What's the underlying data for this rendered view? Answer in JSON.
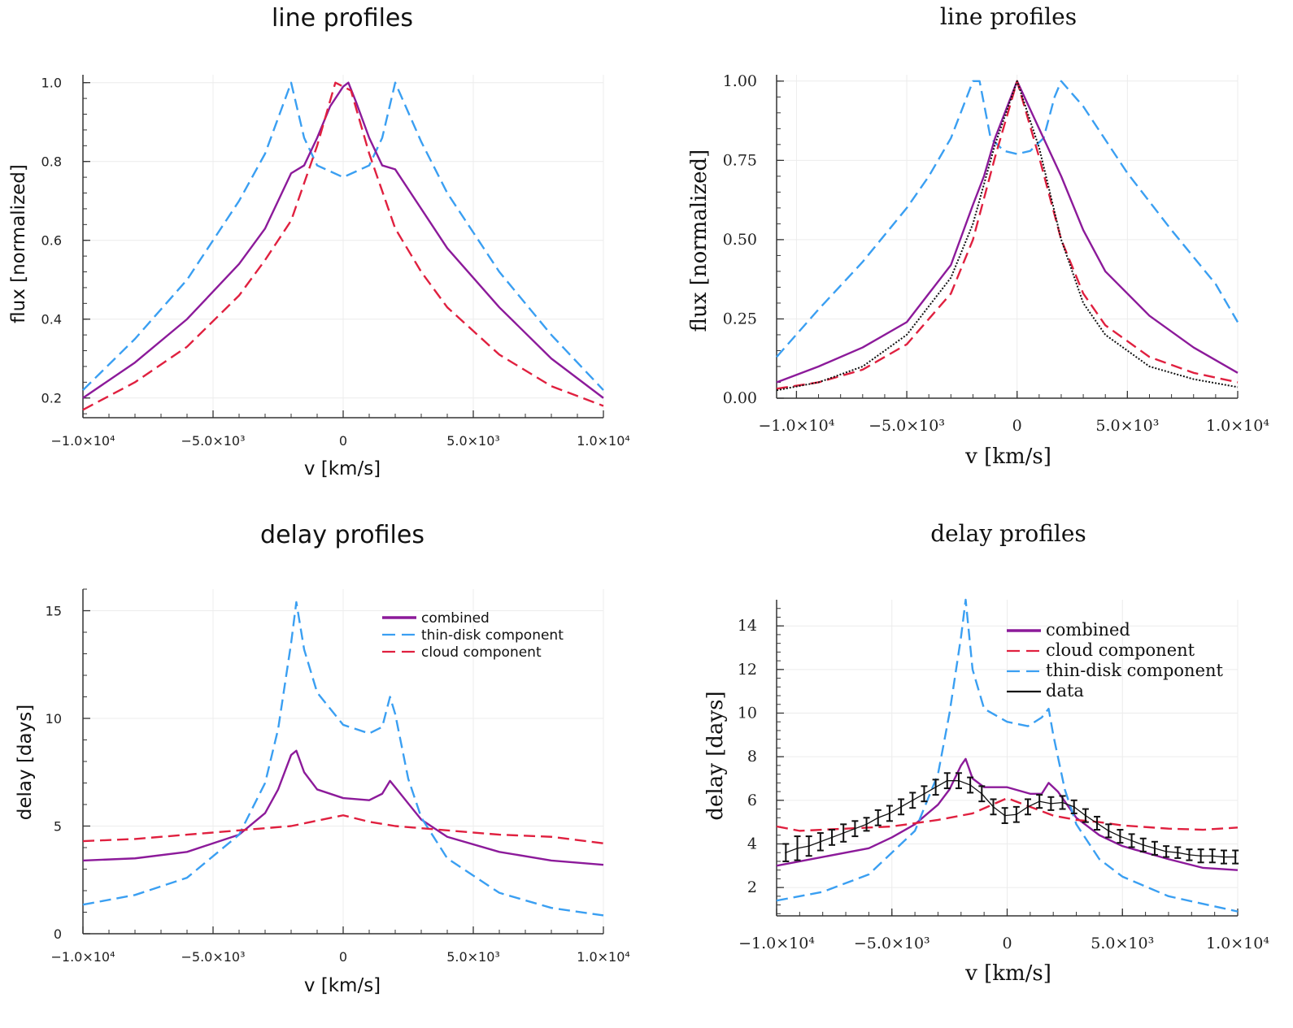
{
  "chart_data": [
    {
      "type": "line",
      "title": "line profiles",
      "xlabel": "v [km/s]",
      "ylabel": "flux [normalized]",
      "xlim": [
        -10000,
        10000
      ],
      "ylim": [
        0.15,
        1.02
      ],
      "grid": true,
      "xticks": [
        -10000,
        -5000,
        0,
        5000,
        10000
      ],
      "xtick_labels": [
        "−1.0×10⁴",
        "−5.0×10³",
        "0",
        "5.0×10³",
        "1.0×10⁴"
      ],
      "yticks": [
        0.2,
        0.4,
        0.6,
        0.8,
        1.0
      ],
      "ytick_labels": [
        "0.2",
        "0.4",
        "0.6",
        "0.8",
        "1.0"
      ],
      "series": [
        {
          "color": "#3a9ff2",
          "style": "dashed",
          "x": [
            -10000,
            -8000,
            -6000,
            -4000,
            -3000,
            -2000,
            -1500,
            -1000,
            0,
            1000,
            1500,
            2000,
            3000,
            4000,
            6000,
            8000,
            10000
          ],
          "y": [
            0.22,
            0.35,
            0.5,
            0.7,
            0.82,
            1.0,
            0.86,
            0.79,
            0.76,
            0.79,
            0.86,
            1.0,
            0.85,
            0.72,
            0.52,
            0.36,
            0.22
          ]
        },
        {
          "color": "#8c1a9a",
          "style": "solid",
          "x": [
            -10000,
            -8000,
            -6000,
            -4000,
            -3000,
            -2000,
            -1500,
            -1000,
            -500,
            0,
            200,
            500,
            1000,
            1500,
            2000,
            3000,
            4000,
            6000,
            8000,
            10000
          ],
          "y": [
            0.2,
            0.29,
            0.4,
            0.54,
            0.63,
            0.77,
            0.79,
            0.86,
            0.94,
            0.99,
            1.0,
            0.95,
            0.86,
            0.79,
            0.78,
            0.68,
            0.58,
            0.43,
            0.3,
            0.2
          ]
        },
        {
          "color": "#e0203f",
          "style": "dashed",
          "x": [
            -10000,
            -8000,
            -6000,
            -4000,
            -3000,
            -2000,
            -1000,
            -300,
            0,
            300,
            1000,
            2000,
            3000,
            4000,
            6000,
            8000,
            10000
          ],
          "y": [
            0.17,
            0.24,
            0.33,
            0.46,
            0.55,
            0.65,
            0.84,
            1.0,
            0.99,
            0.98,
            0.82,
            0.63,
            0.52,
            0.43,
            0.31,
            0.23,
            0.18
          ]
        }
      ]
    },
    {
      "type": "line",
      "title": "line profiles",
      "xlabel": "v [km/s]",
      "ylabel": "flux [normalized]",
      "xlim": [
        -10900,
        10000
      ],
      "ylim": [
        0,
        1.02
      ],
      "grid": true,
      "xticks": [
        -10000,
        -5000,
        0,
        5000,
        10000
      ],
      "xtick_labels": [
        "−1.0×10⁴",
        "−5.0×10³",
        "0",
        "5.0×10³",
        "1.0×10⁴"
      ],
      "yticks": [
        0,
        0.25,
        0.5,
        0.75,
        1.0
      ],
      "ytick_labels": [
        "0.00",
        "0.25",
        "0.50",
        "0.75",
        "1.00"
      ],
      "series": [
        {
          "color": "#3a9ff2",
          "style": "dashed",
          "x": [
            -10900,
            -9000,
            -7000,
            -5000,
            -4000,
            -3000,
            -2000,
            -1700,
            -1200,
            -600,
            0,
            600,
            1200,
            1700,
            2000,
            3000,
            5000,
            7000,
            9000,
            10000
          ],
          "y": [
            0.13,
            0.28,
            0.43,
            0.6,
            0.7,
            0.82,
            1.0,
            1.0,
            0.82,
            0.78,
            0.77,
            0.78,
            0.82,
            0.95,
            1.0,
            0.92,
            0.71,
            0.53,
            0.36,
            0.24
          ]
        },
        {
          "color": "#8c1a9a",
          "style": "solid",
          "x": [
            -10900,
            -9000,
            -7000,
            -5000,
            -3000,
            -2000,
            -1500,
            -1000,
            0,
            1000,
            2000,
            3000,
            4000,
            6000,
            8000,
            10000
          ],
          "y": [
            0.05,
            0.1,
            0.16,
            0.24,
            0.42,
            0.61,
            0.7,
            0.82,
            1.0,
            0.85,
            0.7,
            0.53,
            0.4,
            0.26,
            0.16,
            0.08
          ]
        },
        {
          "color": "#e0203f",
          "style": "dashed",
          "x": [
            -10900,
            -9000,
            -7000,
            -5000,
            -3000,
            -2000,
            -1000,
            0,
            1000,
            2000,
            3000,
            4000,
            6000,
            8000,
            10000
          ],
          "y": [
            0.03,
            0.05,
            0.09,
            0.17,
            0.33,
            0.5,
            0.76,
            1.0,
            0.76,
            0.5,
            0.33,
            0.23,
            0.13,
            0.08,
            0.05
          ]
        },
        {
          "color": "#111111",
          "style": "dotted",
          "x": [
            -10900,
            -9000,
            -7000,
            -5000,
            -3000,
            -2000,
            -1000,
            0,
            1000,
            2000,
            3000,
            4000,
            6000,
            8000,
            10000
          ],
          "y": [
            0.025,
            0.05,
            0.1,
            0.2,
            0.38,
            0.55,
            0.8,
            1.0,
            0.79,
            0.5,
            0.3,
            0.2,
            0.1,
            0.06,
            0.035
          ]
        }
      ]
    },
    {
      "type": "line",
      "title": "delay profiles",
      "xlabel": "v [km/s]",
      "ylabel": "delay [days]",
      "xlim": [
        -10000,
        10000
      ],
      "ylim": [
        0,
        16
      ],
      "grid": true,
      "legend": "top-right",
      "xticks": [
        -10000,
        -5000,
        0,
        5000,
        10000
      ],
      "xtick_labels": [
        "−1.0×10⁴",
        "−5.0×10³",
        "0",
        "5.0×10³",
        "1.0×10⁴"
      ],
      "yticks": [
        0,
        5,
        10,
        15
      ],
      "ytick_labels": [
        "0",
        "5",
        "10",
        "15"
      ],
      "series": [
        {
          "name": "combined",
          "color": "#8c1a9a",
          "style": "solid",
          "x": [
            -10000,
            -8000,
            -6000,
            -4000,
            -3000,
            -2500,
            -2000,
            -1800,
            -1500,
            -1000,
            0,
            1000,
            1500,
            1800,
            2000,
            3000,
            4000,
            6000,
            8000,
            10000
          ],
          "y": [
            3.4,
            3.5,
            3.8,
            4.6,
            5.6,
            6.7,
            8.3,
            8.5,
            7.5,
            6.7,
            6.3,
            6.2,
            6.5,
            7.1,
            6.8,
            5.3,
            4.5,
            3.8,
            3.4,
            3.2
          ]
        },
        {
          "name": "thin-disk component",
          "color": "#3a9ff2",
          "style": "dashed",
          "x": [
            -10000,
            -8000,
            -6000,
            -4000,
            -3000,
            -2500,
            -2000,
            -1800,
            -1500,
            -1000,
            0,
            1000,
            1500,
            1800,
            2000,
            2500,
            3000,
            4000,
            6000,
            8000,
            10000
          ],
          "y": [
            1.35,
            1.8,
            2.6,
            4.6,
            7.0,
            9.5,
            13.5,
            15.4,
            13.2,
            11.2,
            9.7,
            9.3,
            9.6,
            11.0,
            10.2,
            7.2,
            5.4,
            3.5,
            1.9,
            1.2,
            0.85
          ]
        },
        {
          "name": "cloud component",
          "color": "#e0203f",
          "style": "dashed",
          "x": [
            -10000,
            -8000,
            -6000,
            -4000,
            -2000,
            0,
            1000,
            2000,
            4000,
            6000,
            8000,
            10000
          ],
          "y": [
            4.3,
            4.4,
            4.6,
            4.8,
            5.0,
            5.5,
            5.2,
            5.0,
            4.8,
            4.6,
            4.5,
            4.2
          ]
        }
      ]
    },
    {
      "type": "line",
      "title": "delay profiles",
      "xlabel": "v [km/s]",
      "ylabel": "delay [days]",
      "xlim": [
        -10000,
        10000
      ],
      "ylim": [
        0.7,
        15.2
      ],
      "grid": true,
      "legend": "top-right",
      "xticks": [
        -10000,
        -5000,
        0,
        5000,
        10000
      ],
      "xtick_labels": [
        "−1.0×10⁴",
        "−5.0×10³",
        "0",
        "5.0×10³",
        "1.0×10⁴"
      ],
      "yticks": [
        2,
        4,
        6,
        8,
        10,
        12,
        14
      ],
      "ytick_labels": [
        "2",
        "4",
        "6",
        "8",
        "10",
        "12",
        "14"
      ],
      "series": [
        {
          "name": "combined",
          "color": "#8c1a9a",
          "style": "solid",
          "x": [
            -10000,
            -8000,
            -6000,
            -5000,
            -4000,
            -3000,
            -2500,
            -2000,
            -1800,
            -1500,
            -1000,
            0,
            1000,
            1500,
            1800,
            2200,
            3000,
            4000,
            5000,
            7000,
            8500,
            10000
          ],
          "y": [
            3.0,
            3.4,
            3.8,
            4.3,
            4.9,
            5.8,
            6.5,
            7.6,
            7.9,
            7.0,
            6.6,
            6.6,
            6.3,
            6.3,
            6.8,
            6.4,
            5.2,
            4.4,
            3.9,
            3.3,
            2.9,
            2.8
          ]
        },
        {
          "name": "cloud component",
          "color": "#e0203f",
          "style": "dashed",
          "x": [
            -10000,
            -9000,
            -7000,
            -5000,
            -3000,
            -1500,
            0,
            1000,
            2000,
            3000,
            4000,
            5000,
            7000,
            8500,
            10000
          ],
          "y": [
            4.8,
            4.6,
            4.7,
            4.8,
            5.1,
            5.4,
            6.1,
            5.7,
            5.3,
            5.1,
            5.0,
            4.85,
            4.7,
            4.65,
            4.75
          ]
        },
        {
          "name": "thin-disk component",
          "color": "#3a9ff2",
          "style": "dashed",
          "x": [
            -10000,
            -8000,
            -6000,
            -4000,
            -3000,
            -2500,
            -2000,
            -1800,
            -1500,
            -1000,
            0,
            900,
            1500,
            1800,
            2000,
            2500,
            3000,
            4000,
            5000,
            7000,
            10000
          ],
          "y": [
            1.4,
            1.8,
            2.6,
            4.6,
            7.2,
            10.0,
            13.5,
            15.2,
            12.0,
            10.2,
            9.6,
            9.4,
            9.8,
            10.2,
            9.0,
            6.5,
            4.9,
            3.3,
            2.5,
            1.6,
            0.9
          ]
        },
        {
          "name": "data",
          "color": "#111111",
          "style": "errorbar",
          "x": [
            -9600,
            -9100,
            -8600,
            -8100,
            -7600,
            -7100,
            -6600,
            -6100,
            -5600,
            -5100,
            -4600,
            -4100,
            -3600,
            -3100,
            -2600,
            -2100,
            -1600,
            -1100,
            -600,
            -100,
            400,
            900,
            1400,
            1900,
            2400,
            2900,
            3400,
            3900,
            4400,
            4900,
            5400,
            5900,
            6400,
            6900,
            7400,
            7900,
            8400,
            8900,
            9400,
            9900
          ],
          "y": [
            3.6,
            3.8,
            3.9,
            4.1,
            4.3,
            4.5,
            4.7,
            4.9,
            5.2,
            5.4,
            5.7,
            6.0,
            6.3,
            6.6,
            6.9,
            6.9,
            6.7,
            6.3,
            5.7,
            5.3,
            5.35,
            5.7,
            5.95,
            5.85,
            5.9,
            5.7,
            5.3,
            4.95,
            4.6,
            4.35,
            4.15,
            3.95,
            3.8,
            3.65,
            3.6,
            3.5,
            3.45,
            3.45,
            3.4,
            3.4
          ],
          "yerr": [
            0.4,
            0.55,
            0.45,
            0.4,
            0.35,
            0.4,
            0.35,
            0.3,
            0.35,
            0.35,
            0.35,
            0.35,
            0.35,
            0.35,
            0.35,
            0.35,
            0.35,
            0.35,
            0.35,
            0.35,
            0.35,
            0.35,
            0.3,
            0.3,
            0.3,
            0.3,
            0.3,
            0.3,
            0.3,
            0.3,
            0.3,
            0.3,
            0.3,
            0.25,
            0.25,
            0.25,
            0.3,
            0.3,
            0.3,
            0.3
          ]
        }
      ]
    }
  ]
}
